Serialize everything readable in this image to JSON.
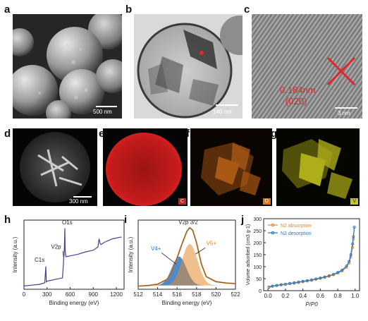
{
  "panels": {
    "a": {
      "letter": "a",
      "scale": "500 nm"
    },
    "b": {
      "letter": "b",
      "scale": "140 nm"
    },
    "c": {
      "letter": "c",
      "scale": "3 nm",
      "d_spacing": "0.184nm",
      "plane": "(020)"
    },
    "d": {
      "letter": "d",
      "scale": "300 nm"
    },
    "e": {
      "letter": "e",
      "element": "C"
    },
    "f": {
      "letter": "f",
      "element": "O"
    },
    "g": {
      "letter": "g",
      "element": "V"
    },
    "h": {
      "letter": "h"
    },
    "i": {
      "letter": "i"
    },
    "j": {
      "letter": "j"
    }
  },
  "colors": {
    "purple": "#4d3a9a",
    "orange": "#e58a2c",
    "blue": "#2b77c9",
    "red_map": "#d21e1e",
    "orange_map": "#e0741d",
    "yellow_map": "#d8d81f",
    "annot_red": "#e0262b"
  },
  "chart_data": [
    {
      "panel": "h",
      "type": "line",
      "xlabel": "Binding energy (eV)",
      "ylabel": "Intensity (a.u.)",
      "xlim": [
        0,
        1300
      ],
      "xticks": [
        0,
        300,
        600,
        900,
        1200
      ],
      "annotations": [
        "C1s",
        "V2p",
        "O1s"
      ],
      "series": [
        {
          "x": [
            0,
            100,
            200,
            270,
            284,
            290,
            300,
            400,
            500,
            512,
            516,
            522,
            531,
            535,
            545,
            600,
            700,
            800,
            900,
            960,
            975,
            990,
            1000,
            1050,
            1100,
            1150,
            1200,
            1250,
            1270
          ],
          "y": [
            4,
            5,
            6,
            8,
            28,
            9,
            10,
            12,
            14,
            30,
            40,
            42,
            75,
            48,
            40,
            41,
            43,
            46,
            48,
            52,
            62,
            56,
            55,
            58,
            60,
            62,
            63,
            64,
            64
          ]
        }
      ]
    },
    {
      "panel": "i",
      "type": "line",
      "xlabel": "Binding energy (eV)",
      "ylabel": "Intensity (a.u.)",
      "xlim": [
        512,
        522
      ],
      "xticks": [
        512,
        514,
        516,
        518,
        520,
        522
      ],
      "annotations": [
        "V2p 3/2",
        "V4+",
        "V5+"
      ],
      "series": [
        {
          "x": [
            512,
            513,
            514,
            515,
            515.5,
            516,
            516.5,
            517,
            517.3,
            517.6,
            518,
            518.5,
            519,
            520,
            521,
            522
          ],
          "y": [
            5,
            6,
            8,
            16,
            28,
            50,
            72,
            92,
            98,
            94,
            74,
            40,
            20,
            12,
            10,
            9
          ]
        }
      ],
      "components": [
        {
          "name": "V4+",
          "center": 516.2,
          "height": 46,
          "width": 0.75
        },
        {
          "name": "V5+",
          "center": 517.3,
          "height": 66,
          "width": 0.8
        }
      ]
    },
    {
      "panel": "j",
      "type": "line",
      "xlabel": "P/P0",
      "ylabel": "Volume adsorbed (cm3 g-1)",
      "xlim": [
        -0.05,
        1.05
      ],
      "ylim": [
        0,
        300
      ],
      "xticks": [
        0.0,
        0.2,
        0.4,
        0.6,
        0.8,
        1.0
      ],
      "yticks": [
        0,
        50,
        100,
        150,
        200,
        250,
        300
      ],
      "series": [
        {
          "name": "N2 absorption",
          "x": [
            0.01,
            0.05,
            0.1,
            0.15,
            0.2,
            0.25,
            0.3,
            0.35,
            0.4,
            0.45,
            0.5,
            0.55,
            0.6,
            0.65,
            0.7,
            0.75,
            0.8,
            0.85,
            0.9,
            0.93,
            0.95,
            0.97,
            0.98,
            0.99
          ],
          "y": [
            14,
            18,
            21,
            24,
            26,
            29,
            31,
            34,
            37,
            40,
            43,
            47,
            51,
            55,
            60,
            66,
            73,
            82,
            97,
            115,
            140,
            180,
            215,
            265
          ]
        },
        {
          "name": "N2 desorption",
          "x": [
            0.99,
            0.98,
            0.97,
            0.95,
            0.93,
            0.9,
            0.85,
            0.8,
            0.75,
            0.7,
            0.65,
            0.6,
            0.55,
            0.5,
            0.45,
            0.4,
            0.35,
            0.3,
            0.25,
            0.2,
            0.15,
            0.1,
            0.05,
            0.01
          ],
          "y": [
            265,
            225,
            195,
            150,
            122,
            103,
            86,
            76,
            68,
            62,
            57,
            53,
            49,
            45,
            42,
            39,
            36,
            33,
            30,
            27,
            25,
            22,
            19,
            15
          ]
        }
      ]
    }
  ]
}
